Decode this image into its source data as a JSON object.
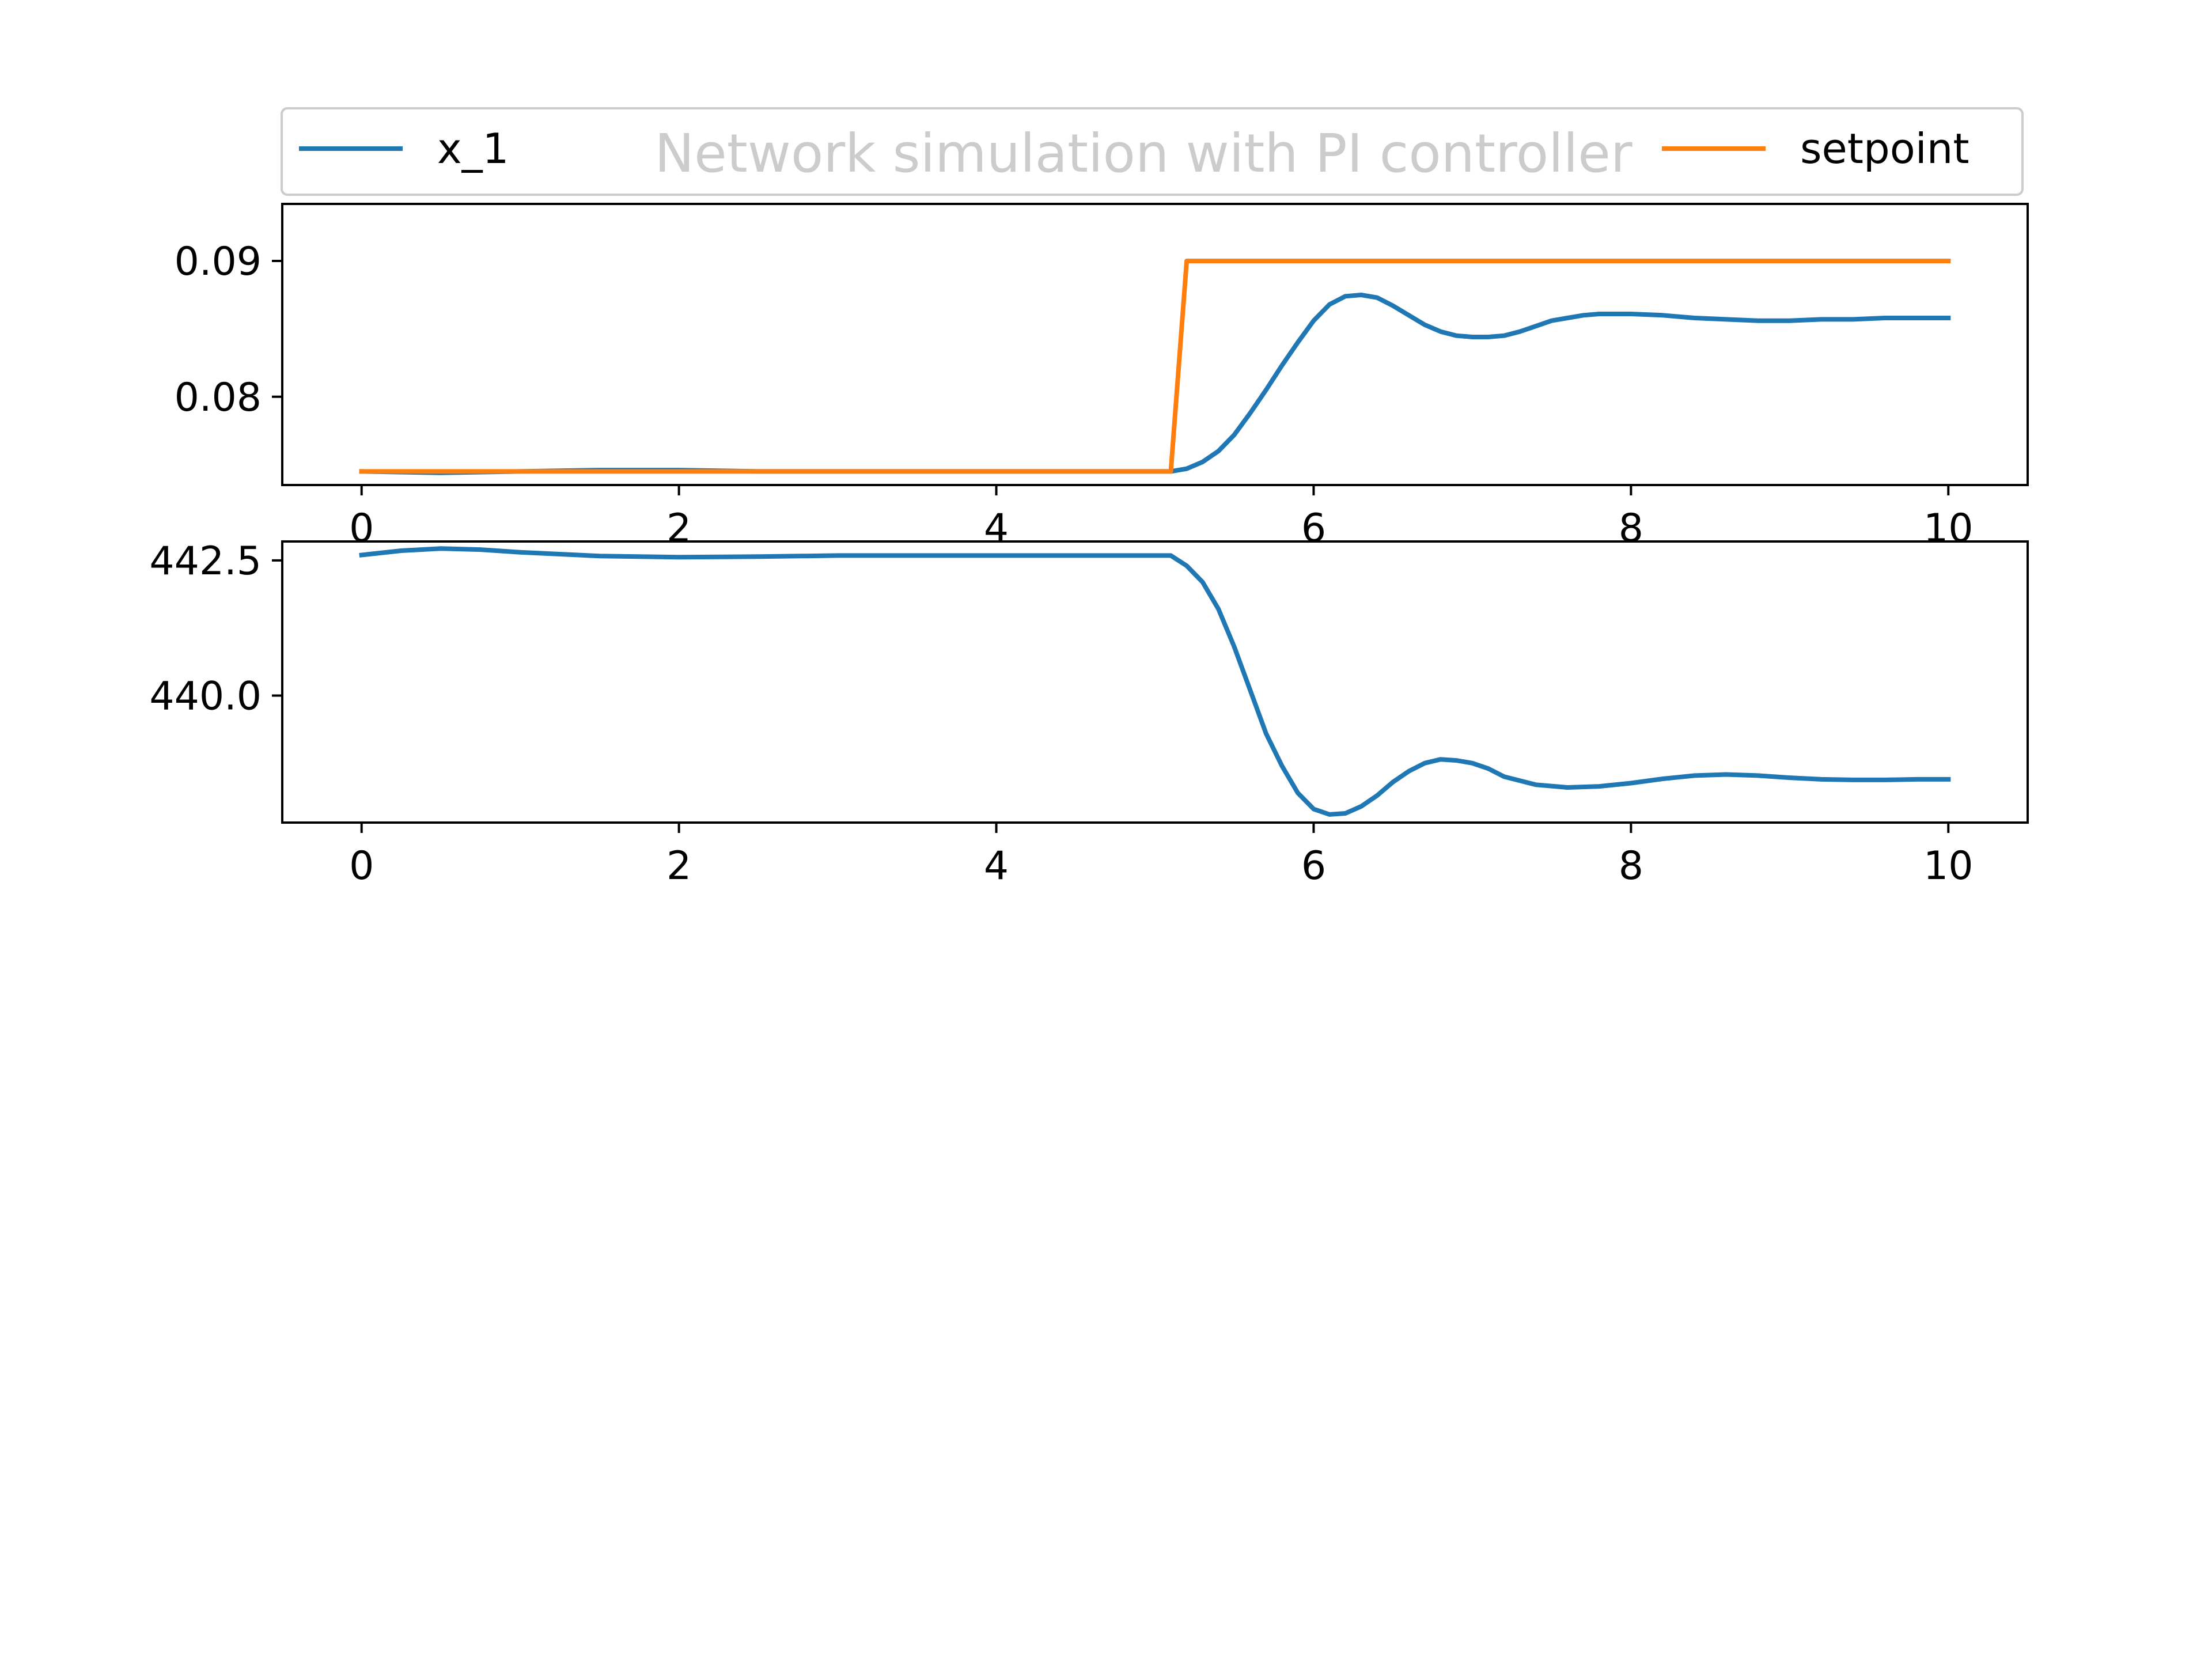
{
  "title": "Network simulation with PI controller",
  "colors": {
    "series1": "#1f77b4",
    "series2": "#ff7f0e",
    "title": "#cccccc",
    "axes": "#000000"
  },
  "legend": {
    "placement": "top, spanning width above first subplot",
    "entries": [
      {
        "label": "x_1",
        "color": "#1f77b4"
      },
      {
        "label": "setpoint",
        "color": "#ff7f0e"
      }
    ]
  },
  "chart_data": [
    {
      "type": "line",
      "title": "Network simulation with PI controller",
      "xlabel": "",
      "ylabel": "",
      "xlim": [
        -0.5,
        10.5
      ],
      "ylim": [
        0.0735,
        0.0942
      ],
      "xticks": [
        0,
        2,
        4,
        6,
        8,
        10
      ],
      "xtick_labels": [
        "0",
        "2",
        "4",
        "6",
        "8",
        "10"
      ],
      "yticks": [
        0.08,
        0.09
      ],
      "ytick_labels": [
        "0.08",
        "0.09"
      ],
      "grid": false,
      "series": [
        {
          "name": "x_1",
          "color": "#1f77b4",
          "x": [
            0,
            0.5,
            1,
            1.5,
            2,
            2.5,
            3,
            3.5,
            4,
            4.5,
            5,
            5.1,
            5.2,
            5.3,
            5.4,
            5.5,
            5.6,
            5.7,
            5.8,
            5.9,
            6.0,
            6.1,
            6.2,
            6.3,
            6.4,
            6.5,
            6.6,
            6.7,
            6.8,
            6.9,
            7.0,
            7.1,
            7.2,
            7.3,
            7.4,
            7.5,
            7.6,
            7.7,
            7.8,
            7.9,
            8.0,
            8.2,
            8.4,
            8.6,
            8.8,
            9.0,
            9.2,
            9.4,
            9.6,
            9.8,
            10.0
          ],
          "values": [
            0.0745,
            0.0744,
            0.0745,
            0.0746,
            0.0746,
            0.0745,
            0.0745,
            0.0745,
            0.0745,
            0.0745,
            0.0745,
            0.0745,
            0.0747,
            0.0752,
            0.076,
            0.0772,
            0.0788,
            0.0805,
            0.0823,
            0.084,
            0.0856,
            0.0868,
            0.0874,
            0.0875,
            0.0873,
            0.0867,
            0.086,
            0.0853,
            0.0848,
            0.0845,
            0.0844,
            0.0844,
            0.0845,
            0.0848,
            0.0852,
            0.0856,
            0.0858,
            0.086,
            0.0861,
            0.0861,
            0.0861,
            0.086,
            0.0858,
            0.0857,
            0.0856,
            0.0856,
            0.0857,
            0.0857,
            0.0858,
            0.0858,
            0.0858
          ]
        },
        {
          "name": "setpoint",
          "color": "#ff7f0e",
          "x": [
            0,
            5.1,
            5.2,
            10.0
          ],
          "values": [
            0.0745,
            0.0745,
            0.09,
            0.09
          ]
        }
      ]
    },
    {
      "type": "line",
      "title": "",
      "xlabel": "",
      "ylabel": "",
      "xlim": [
        -0.5,
        10.5
      ],
      "ylim": [
        437.65,
        442.85
      ],
      "xticks": [
        0,
        2,
        4,
        6,
        8,
        10
      ],
      "xtick_labels": [
        "0",
        "2",
        "4",
        "6",
        "8",
        "10"
      ],
      "yticks": [
        440.0,
        442.5
      ],
      "ytick_labels": [
        "440.0",
        "442.5"
      ],
      "grid": false,
      "series": [
        {
          "name": "x_1",
          "color": "#1f77b4",
          "x": [
            0,
            0.25,
            0.5,
            0.75,
            1.0,
            1.5,
            2.0,
            2.5,
            3.0,
            3.5,
            4.0,
            4.5,
            5.0,
            5.1,
            5.2,
            5.3,
            5.4,
            5.5,
            5.6,
            5.7,
            5.8,
            5.9,
            6.0,
            6.1,
            6.2,
            6.3,
            6.4,
            6.5,
            6.6,
            6.7,
            6.8,
            6.9,
            7.0,
            7.1,
            7.2,
            7.4,
            7.6,
            7.8,
            8.0,
            8.2,
            8.4,
            8.6,
            8.8,
            9.0,
            9.2,
            9.4,
            9.6,
            9.8,
            10.0
          ],
          "values": [
            442.6,
            442.68,
            442.72,
            442.7,
            442.65,
            442.58,
            442.56,
            442.57,
            442.59,
            442.59,
            442.59,
            442.59,
            442.59,
            442.59,
            442.4,
            442.1,
            441.6,
            440.9,
            440.1,
            439.3,
            438.7,
            438.2,
            437.9,
            437.8,
            437.82,
            437.95,
            438.15,
            438.4,
            438.6,
            438.75,
            438.82,
            438.8,
            438.75,
            438.65,
            438.5,
            438.35,
            438.3,
            438.32,
            438.38,
            438.46,
            438.52,
            438.54,
            438.52,
            438.48,
            438.45,
            438.44,
            438.44,
            438.45,
            438.45
          ]
        }
      ]
    }
  ]
}
